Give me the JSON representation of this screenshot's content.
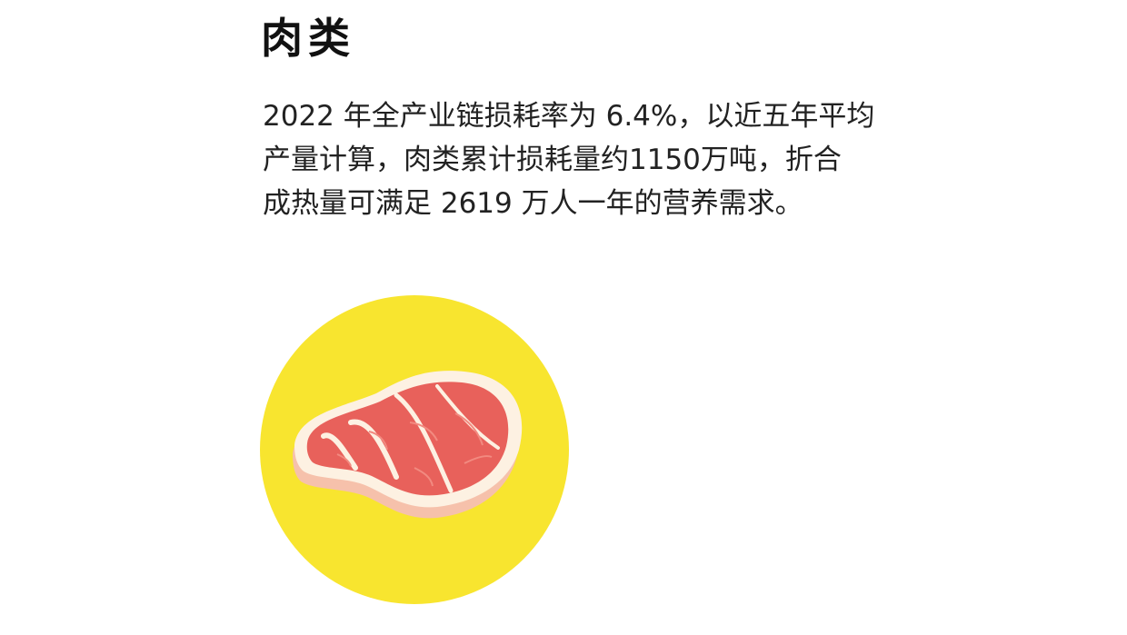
{
  "section": {
    "title": "肉类",
    "paragraph_lines": [
      "2022 年全产业链损耗率为 6.4%，以近五年平均",
      "产量计算，肉类累计损耗量约1150万吨，折合",
      "成热量可满足 2619 万人一年的营养需求。"
    ]
  },
  "illustration": {
    "icon": "steak-icon",
    "background_color": "#F8E52F",
    "meat_color": "#E8615B",
    "fat_color": "#FDF1E2",
    "edge_color": "#F6C1AB"
  }
}
